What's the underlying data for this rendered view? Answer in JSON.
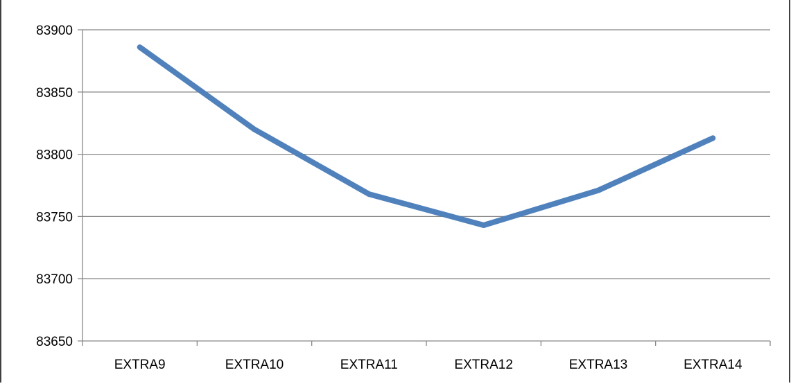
{
  "chart_data": {
    "type": "line",
    "categories": [
      "EXTRA9",
      "EXTRA10",
      "EXTRA11",
      "EXTRA12",
      "EXTRA13",
      "EXTRA14"
    ],
    "series": [
      {
        "values": [
          83886,
          83820,
          83768,
          83743,
          83771,
          83813
        ],
        "color": "#4F81BD"
      }
    ],
    "title": "",
    "xlabel": "",
    "ylabel": "",
    "ylim": [
      83650,
      83900
    ],
    "yticks": [
      "83900",
      "83850",
      "83800",
      "83750",
      "83700",
      "83650"
    ],
    "grid": true,
    "legend": "none"
  },
  "colors": {
    "gridline": "#878787",
    "frame": "#000000",
    "text": "#000000"
  }
}
